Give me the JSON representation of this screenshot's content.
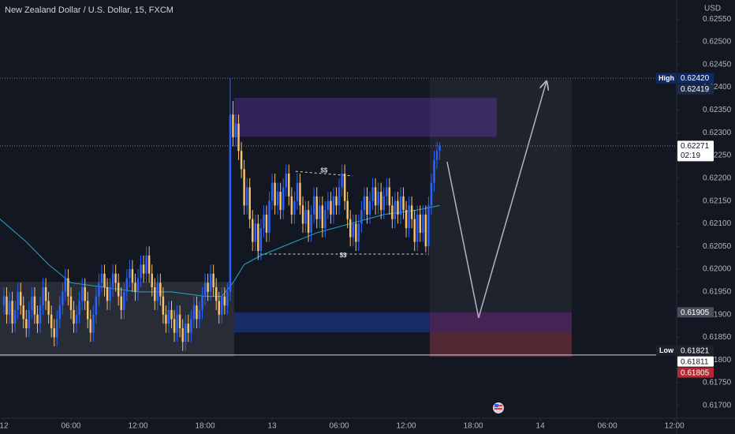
{
  "chart_data": {
    "type": "candlestick",
    "title": "New Zealand Dollar / U.S. Dollar, 15, FXCM",
    "currency": "USD",
    "up_color": "#2962ff",
    "down_color": "#f5c16c",
    "xlim": [
      -0.35,
      60.2
    ],
    "ylim": [
      0.61672,
      0.62592
    ],
    "grid": false,
    "xticks": [
      {
        "value": 0,
        "label": "12"
      },
      {
        "value": 6,
        "label": "06:00"
      },
      {
        "value": 12,
        "label": "12:00"
      },
      {
        "value": 18,
        "label": "18:00"
      },
      {
        "value": 24,
        "label": "13"
      },
      {
        "value": 30,
        "label": "06:00"
      },
      {
        "value": 36,
        "label": "12:00"
      },
      {
        "value": 42,
        "label": "18:00"
      },
      {
        "value": 48,
        "label": "14"
      },
      {
        "value": 54,
        "label": "06:00"
      },
      {
        "value": 60,
        "label": "12:00"
      }
    ],
    "yticks": [
      {
        "value": 0.617,
        "label": "0.61700"
      },
      {
        "value": 0.6175,
        "label": "0.61750"
      },
      {
        "value": 0.618,
        "label": "0.61800"
      },
      {
        "value": 0.6185,
        "label": "0.61850"
      },
      {
        "value": 0.619,
        "label": "0.61900"
      },
      {
        "value": 0.6195,
        "label": "0.61950"
      },
      {
        "value": 0.62,
        "label": "0.62000"
      },
      {
        "value": 0.6205,
        "label": "0.62050"
      },
      {
        "value": 0.621,
        "label": "0.62100"
      },
      {
        "value": 0.6215,
        "label": "0.62150"
      },
      {
        "value": 0.622,
        "label": "0.62200"
      },
      {
        "value": 0.6225,
        "label": "0.62250"
      },
      {
        "value": 0.623,
        "label": "0.62300"
      },
      {
        "value": 0.6235,
        "label": "0.62350"
      },
      {
        "value": 0.624,
        "label": "0.62400"
      },
      {
        "value": 0.6245,
        "label": "0.62450"
      },
      {
        "value": 0.625,
        "label": "0.62500"
      },
      {
        "value": 0.6255,
        "label": "0.62550"
      }
    ],
    "x": [
      0,
      0.25,
      0.5,
      0.75,
      1,
      1.25,
      1.5,
      1.75,
      2,
      2.25,
      2.5,
      2.75,
      3,
      3.25,
      3.5,
      3.75,
      4,
      4.25,
      4.5,
      4.75,
      5,
      5.25,
      5.5,
      5.75,
      6,
      6.25,
      6.5,
      6.75,
      7,
      7.25,
      7.5,
      7.75,
      8,
      8.25,
      8.5,
      8.75,
      9,
      9.25,
      9.5,
      9.75,
      10,
      10.25,
      10.5,
      10.75,
      11,
      11.25,
      11.5,
      11.75,
      12,
      12.25,
      12.5,
      12.75,
      13,
      13.25,
      13.5,
      13.75,
      14,
      14.25,
      14.5,
      14.75,
      15,
      15.25,
      15.5,
      15.75,
      16,
      16.25,
      16.5,
      16.75,
      17,
      17.25,
      17.5,
      17.75,
      18,
      18.25,
      18.5,
      18.75,
      19,
      19.25,
      19.5,
      19.75,
      20,
      20.25,
      20.5,
      20.75,
      21,
      21.25,
      21.5,
      21.75,
      22,
      22.25,
      22.5,
      22.75,
      23,
      23.25,
      23.5,
      23.75,
      24,
      24.25,
      24.5,
      24.75,
      25,
      25.25,
      25.5,
      25.75,
      26,
      26.25,
      26.5,
      26.75,
      27,
      27.25,
      27.5,
      27.75,
      28,
      28.25,
      28.5,
      28.75,
      29,
      29.25,
      29.5,
      29.75,
      30,
      30.25,
      30.5,
      30.75,
      31,
      31.25,
      31.5,
      31.75,
      32,
      32.25,
      32.5,
      32.75,
      33,
      33.25,
      33.5,
      33.75,
      34,
      34.25,
      34.5,
      34.75,
      35,
      35.25,
      35.5,
      35.75,
      36,
      36.25,
      36.5,
      36.75,
      37,
      37.25,
      37.5,
      37.75,
      38,
      38.25,
      38.5,
      38.75,
      39
    ],
    "open": [
      0.6192,
      0.6194,
      0.619,
      0.6193,
      0.6188,
      0.6191,
      0.6195,
      0.6192,
      0.6189,
      0.6187,
      0.6191,
      0.6194,
      0.619,
      0.6188,
      0.6192,
      0.6196,
      0.6193,
      0.619,
      0.6187,
      0.6185,
      0.6189,
      0.6192,
      0.6195,
      0.6198,
      0.6194,
      0.6191,
      0.6188,
      0.619,
      0.6193,
      0.6196,
      0.6193,
      0.6189,
      0.6186,
      0.619,
      0.6194,
      0.6197,
      0.6199,
      0.6196,
      0.6193,
      0.6196,
      0.6199,
      0.6197,
      0.6194,
      0.6191,
      0.6195,
      0.6198,
      0.62,
      0.6197,
      0.6195,
      0.6198,
      0.6201,
      0.6199,
      0.6203,
      0.6199,
      0.6196,
      0.6193,
      0.6197,
      0.6194,
      0.619,
      0.6188,
      0.6191,
      0.6189,
      0.6186,
      0.619,
      0.6187,
      0.6184,
      0.6188,
      0.6186,
      0.6189,
      0.6192,
      0.6189,
      0.6191,
      0.6194,
      0.6197,
      0.6195,
      0.6199,
      0.6196,
      0.6193,
      0.619,
      0.6194,
      0.6192,
      0.6195,
      0.6234,
      0.6229,
      0.6232,
      0.6226,
      0.6222,
      0.6214,
      0.6218,
      0.6211,
      0.6206,
      0.621,
      0.6204,
      0.6209,
      0.6212,
      0.6208,
      0.6215,
      0.6219,
      0.6214,
      0.6217,
      0.6213,
      0.6218,
      0.6221,
      0.6216,
      0.6212,
      0.6215,
      0.6219,
      0.6214,
      0.621,
      0.6213,
      0.6208,
      0.6212,
      0.6216,
      0.6211,
      0.6214,
      0.6209,
      0.6213,
      0.6215,
      0.6212,
      0.6216,
      0.6214,
      0.6218,
      0.6221,
      0.6215,
      0.6211,
      0.6207,
      0.621,
      0.6206,
      0.621,
      0.6213,
      0.6216,
      0.6212,
      0.6215,
      0.6218,
      0.6214,
      0.6217,
      0.6213,
      0.6216,
      0.6218,
      0.6214,
      0.6211,
      0.6215,
      0.6212,
      0.6216,
      0.6213,
      0.6209,
      0.6214,
      0.6211,
      0.6206,
      0.6212,
      0.6208,
      0.6212,
      0.6205,
      0.6214,
      0.6219,
      0.6224,
      0.6226
    ],
    "high": [
      0.6196,
      0.6196,
      0.6195,
      0.6195,
      0.6193,
      0.6197,
      0.6197,
      0.6194,
      0.6191,
      0.6193,
      0.6196,
      0.6196,
      0.6192,
      0.6194,
      0.6198,
      0.6198,
      0.6195,
      0.6192,
      0.6189,
      0.6191,
      0.6194,
      0.6197,
      0.62,
      0.62,
      0.6196,
      0.6193,
      0.6192,
      0.6195,
      0.6198,
      0.6198,
      0.6195,
      0.6191,
      0.6192,
      0.6196,
      0.6199,
      0.6201,
      0.6201,
      0.6198,
      0.6198,
      0.6201,
      0.6201,
      0.6199,
      0.6196,
      0.6197,
      0.62,
      0.6202,
      0.6202,
      0.6199,
      0.62,
      0.6203,
      0.6203,
      0.6205,
      0.6205,
      0.6201,
      0.6198,
      0.6199,
      0.6199,
      0.6196,
      0.6192,
      0.6193,
      0.6193,
      0.6191,
      0.6192,
      0.6192,
      0.6189,
      0.619,
      0.619,
      0.6191,
      0.6194,
      0.6194,
      0.6193,
      0.6196,
      0.6199,
      0.6199,
      0.6201,
      0.6201,
      0.6198,
      0.6195,
      0.6196,
      0.6196,
      0.6197,
      0.6242,
      0.6237,
      0.6234,
      0.6234,
      0.6228,
      0.6224,
      0.622,
      0.622,
      0.6213,
      0.6212,
      0.6212,
      0.6211,
      0.6214,
      0.6214,
      0.6217,
      0.6221,
      0.6221,
      0.6219,
      0.6219,
      0.622,
      0.6223,
      0.6223,
      0.6218,
      0.6217,
      0.6221,
      0.6221,
      0.6216,
      0.6215,
      0.6215,
      0.6214,
      0.6218,
      0.6218,
      0.6216,
      0.6216,
      0.6215,
      0.6217,
      0.6217,
      0.6218,
      0.6218,
      0.622,
      0.6223,
      0.6223,
      0.6217,
      0.6213,
      0.6212,
      0.6212,
      0.6212,
      0.6215,
      0.6218,
      0.6218,
      0.6217,
      0.622,
      0.622,
      0.6219,
      0.6219,
      0.6218,
      0.622,
      0.622,
      0.6216,
      0.6217,
      0.6217,
      0.6218,
      0.6218,
      0.6215,
      0.6216,
      0.6216,
      0.6213,
      0.6214,
      0.6214,
      0.6214,
      0.6214,
      0.6216,
      0.6221,
      0.6226,
      0.6228,
      0.62279
    ],
    "low": [
      0.619,
      0.6188,
      0.6188,
      0.6186,
      0.6186,
      0.6189,
      0.619,
      0.6187,
      0.6185,
      0.6185,
      0.6189,
      0.6188,
      0.6186,
      0.6186,
      0.619,
      0.6191,
      0.6188,
      0.6185,
      0.6183,
      0.6183,
      0.6187,
      0.619,
      0.6193,
      0.6192,
      0.6189,
      0.6186,
      0.6186,
      0.6188,
      0.6191,
      0.6191,
      0.6187,
      0.6184,
      0.6184,
      0.6188,
      0.6192,
      0.6195,
      0.6194,
      0.6191,
      0.6191,
      0.6194,
      0.6195,
      0.6192,
      0.6189,
      0.6189,
      0.6193,
      0.6196,
      0.6195,
      0.6193,
      0.6193,
      0.6196,
      0.6197,
      0.6197,
      0.6197,
      0.6194,
      0.6191,
      0.6191,
      0.6192,
      0.6188,
      0.6186,
      0.6186,
      0.6187,
      0.6184,
      0.6184,
      0.6185,
      0.6182,
      0.6182,
      0.6184,
      0.6184,
      0.6187,
      0.6187,
      0.6187,
      0.6189,
      0.6192,
      0.6193,
      0.6193,
      0.6194,
      0.6191,
      0.6188,
      0.6188,
      0.619,
      0.619,
      0.6193,
      0.6227,
      0.6227,
      0.6224,
      0.622,
      0.6212,
      0.6212,
      0.6209,
      0.6204,
      0.6204,
      0.6202,
      0.6202,
      0.6207,
      0.6206,
      0.6206,
      0.6213,
      0.6212,
      0.6212,
      0.6211,
      0.6211,
      0.6216,
      0.6214,
      0.621,
      0.621,
      0.6213,
      0.6212,
      0.6208,
      0.6208,
      0.6206,
      0.6206,
      0.621,
      0.6209,
      0.6209,
      0.6207,
      0.6207,
      0.6211,
      0.621,
      0.621,
      0.6212,
      0.6212,
      0.6216,
      0.6213,
      0.6209,
      0.6205,
      0.6205,
      0.6204,
      0.6204,
      0.6208,
      0.6211,
      0.621,
      0.621,
      0.6213,
      0.6212,
      0.6212,
      0.6211,
      0.6211,
      0.6214,
      0.6212,
      0.6209,
      0.6209,
      0.621,
      0.621,
      0.6211,
      0.6207,
      0.6207,
      0.6209,
      0.6204,
      0.6204,
      0.6206,
      0.6206,
      0.62037,
      0.6203,
      0.6212,
      0.6217,
      0.6222,
      0.6224
    ],
    "close": [
      0.6194,
      0.619,
      0.6193,
      0.6188,
      0.6191,
      0.6195,
      0.6192,
      0.6189,
      0.6187,
      0.6191,
      0.6194,
      0.619,
      0.6188,
      0.6192,
      0.6196,
      0.6193,
      0.619,
      0.6187,
      0.6185,
      0.6189,
      0.6192,
      0.6195,
      0.6198,
      0.6194,
      0.6191,
      0.6188,
      0.619,
      0.6193,
      0.6196,
      0.6193,
      0.6189,
      0.6186,
      0.619,
      0.6194,
      0.6197,
      0.6199,
      0.6196,
      0.6193,
      0.6196,
      0.6199,
      0.6197,
      0.6194,
      0.6191,
      0.6195,
      0.6198,
      0.62,
      0.6197,
      0.6195,
      0.6198,
      0.6201,
      0.6199,
      0.6203,
      0.6199,
      0.6196,
      0.6193,
      0.6197,
      0.6194,
      0.619,
      0.6188,
      0.6191,
      0.6189,
      0.6186,
      0.619,
      0.6187,
      0.6184,
      0.6188,
      0.6186,
      0.6189,
      0.6192,
      0.6189,
      0.6191,
      0.6194,
      0.6197,
      0.6195,
      0.6199,
      0.6196,
      0.6193,
      0.619,
      0.6194,
      0.6192,
      0.6195,
      0.6234,
      0.6229,
      0.6232,
      0.6226,
      0.6222,
      0.6214,
      0.6218,
      0.6211,
      0.6206,
      0.621,
      0.6204,
      0.6209,
      0.6212,
      0.6208,
      0.6215,
      0.6219,
      0.6214,
      0.6217,
      0.6213,
      0.6218,
      0.6221,
      0.6216,
      0.6212,
      0.6215,
      0.6219,
      0.6214,
      0.621,
      0.6213,
      0.6208,
      0.6212,
      0.6216,
      0.6211,
      0.6214,
      0.6209,
      0.6213,
      0.6215,
      0.6212,
      0.6216,
      0.6214,
      0.6218,
      0.6221,
      0.6215,
      0.6211,
      0.6207,
      0.621,
      0.6206,
      0.621,
      0.6213,
      0.6216,
      0.6212,
      0.6215,
      0.6218,
      0.6214,
      0.6217,
      0.6213,
      0.6216,
      0.6218,
      0.6214,
      0.6211,
      0.6215,
      0.6212,
      0.6216,
      0.6213,
      0.6209,
      0.6214,
      0.6211,
      0.6206,
      0.6212,
      0.6208,
      0.6212,
      0.6205,
      0.6214,
      0.6219,
      0.6224,
      0.6226,
      0.62271
    ],
    "ma": {
      "color": "#26a6c9",
      "x": [
        -0.35,
        2,
        4,
        6,
        9,
        12,
        15,
        18,
        19.5,
        20.5,
        21.5,
        23,
        25,
        28,
        31,
        34,
        37,
        39
      ],
      "values": [
        0.6211,
        0.6206,
        0.6201,
        0.6197,
        0.6196,
        0.6195,
        0.6195,
        0.6194,
        0.6194,
        0.6197,
        0.6201,
        0.6203,
        0.6205,
        0.6208,
        0.621,
        0.6212,
        0.6213,
        0.6214
      ]
    },
    "zones": [
      {
        "x": [
          -0.35,
          20.6
        ],
        "y": [
          0.61807,
          0.61972
        ],
        "color": "rgba(120,123,134,0.22)"
      },
      {
        "x": [
          38.1,
          50.8
        ],
        "y": [
          0.61807,
          0.62418
        ],
        "color": "rgba(120,123,134,0.12)"
      },
      {
        "x": [
          20.6,
          44.1
        ],
        "y": [
          0.62291,
          0.62377
        ],
        "color": "rgba(103,58,183,0.38)"
      },
      {
        "x": [
          20.6,
          38.1
        ],
        "y": [
          0.61861,
          0.61905
        ],
        "color": "rgba(33,87,243,0.32)"
      },
      {
        "x": [
          38.1,
          50.8
        ],
        "y": [
          0.61861,
          0.61905
        ],
        "color": "rgba(156,39,176,0.3)"
      },
      {
        "x": [
          38.1,
          50.8
        ],
        "y": [
          0.61807,
          0.61861
        ],
        "color": "rgba(242,54,69,0.25)"
      }
    ],
    "levels": [
      {
        "x": [
          26.1,
          31.2
        ],
        "y": [
          0.62215,
          0.62205
        ],
        "label": "$$"
      },
      {
        "x": [
          22.9,
          37.8
        ],
        "y": [
          0.62033,
          0.62033
        ],
        "label": "$$"
      }
    ],
    "arrow": {
      "x": [
        39.66,
        42.48,
        48.55
      ],
      "y": [
        0.62236,
        0.61893,
        0.62413
      ],
      "color": "#b2b5be"
    },
    "hlines": [
      {
        "value": 0.6242,
        "style": "dotted"
      },
      {
        "value": 0.62271,
        "style": "dotted"
      },
      {
        "value": 0.61811,
        "style": "solid"
      }
    ],
    "price_labels": [
      {
        "value": 0.6242,
        "label": "0.62420",
        "tag": "High",
        "color": "#0d2a66",
        "text_color": "#ffffff"
      },
      {
        "value": 0.62419,
        "label": "0.62419",
        "color": "#1e2a4a",
        "text_color": "#ffffff"
      },
      {
        "value": 0.62271,
        "label": "0.62271",
        "countdown": "02:19",
        "color": "#ffffff",
        "text_color": "#131722"
      },
      {
        "value": 0.61905,
        "label": "0.61905",
        "color": "#4a4e5a",
        "text_color": "#ffffff"
      },
      {
        "value": 0.61821,
        "label": "0.61821",
        "tag": "Low",
        "color": "#1e222d",
        "text_color": "#ffffff"
      },
      {
        "value": 0.61811,
        "label": "0.61811",
        "color": "#ffffff",
        "text_color": "#131722"
      },
      {
        "value": 0.61805,
        "label": "0.61805",
        "color": "#b22833",
        "text_color": "#ffffff"
      }
    ]
  }
}
